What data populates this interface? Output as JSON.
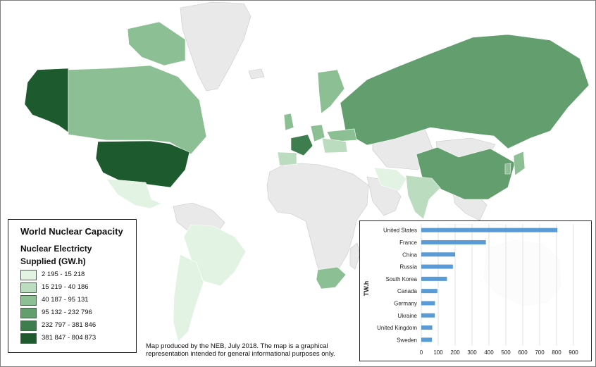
{
  "colors": {
    "water": "#ffffff",
    "no_data": "#e9e9e9",
    "bar": "#5b9bd5"
  },
  "legend": {
    "title": "World Nuclear Capacity",
    "subtitle_line1": "Nuclear Electricty",
    "subtitle_line2": "Supplied (GW.h)",
    "classes": [
      {
        "label": "2 195 - 15 218",
        "color": "#e2f3e4"
      },
      {
        "label": "15 219 - 40 186",
        "color": "#bcdcbf"
      },
      {
        "label": "40 187 - 95 131",
        "color": "#8cbf93"
      },
      {
        "label": "95 132 - 232 796",
        "color": "#639e6f"
      },
      {
        "label": "232 797 - 381 846",
        "color": "#3e7d4d"
      },
      {
        "label": "381 847 - 804 873",
        "color": "#1d5a2e"
      }
    ]
  },
  "credit": {
    "line1": "Map produced by the NEB, July 2018. The map is a graphical",
    "line2": "representation intended for general informational purposes only."
  },
  "chart_data": {
    "type": "bar",
    "orientation": "horizontal",
    "categories": [
      "United States",
      "France",
      "China",
      "Russia",
      "South Korea",
      "Canada",
      "Germany",
      "Ukraine",
      "United Kingdom",
      "Sweden"
    ],
    "values": [
      805,
      382,
      200,
      187,
      152,
      95,
      81,
      80,
      65,
      63
    ],
    "ylabel": "TW.h",
    "xlim": [
      0,
      900
    ],
    "xticks": [
      "0",
      "100",
      "200",
      "300",
      "400",
      "500",
      "600",
      "700",
      "800",
      "900"
    ],
    "grid": true
  }
}
